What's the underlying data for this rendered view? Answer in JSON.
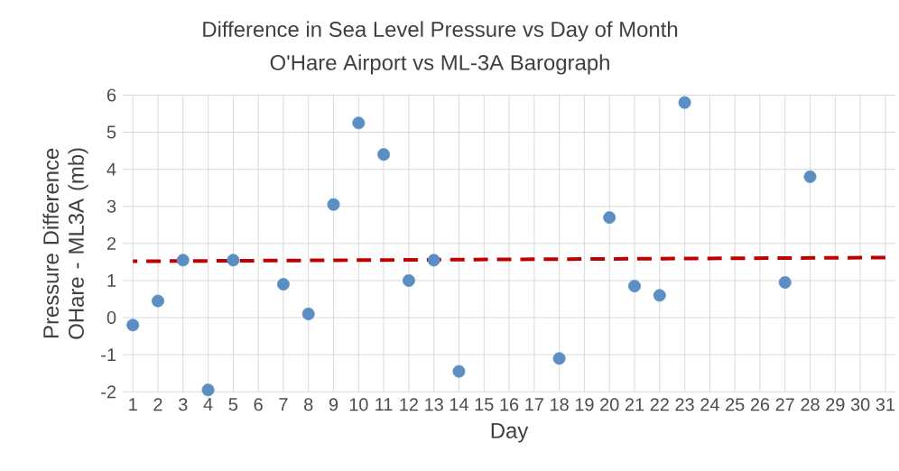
{
  "chart_data": {
    "type": "scatter",
    "title": "Difference in Sea Level Pressure vs Day of Month",
    "subtitle": "O'Hare Airport vs ML-3A Barograph",
    "xlabel": "Day",
    "ylabel": "Pressure Difference OHare - ML3A (mb)",
    "series": [
      {
        "color": "#5b8fc4",
        "marker": "circle",
        "x": [
          1,
          2,
          3,
          4,
          5,
          7,
          8,
          9,
          10,
          11,
          12,
          13,
          14,
          18,
          20,
          21,
          22,
          23,
          27,
          28
        ],
        "values": [
          -0.2,
          0.45,
          1.55,
          -1.95,
          1.55,
          0.9,
          0.1,
          3.05,
          5.25,
          4.4,
          1.0,
          1.55,
          -1.45,
          -1.1,
          2.7,
          0.85,
          0.6,
          5.8,
          0.95,
          3.8
        ]
      },
      {
        "type": "line",
        "color": "#c00000",
        "line_style": "dashed",
        "x": [
          1,
          31
        ],
        "values": [
          1.52,
          1.62
        ]
      }
    ],
    "xlim": [
      0.6,
      31.4
    ],
    "xticks": [
      1,
      2,
      3,
      4,
      5,
      6,
      7,
      8,
      9,
      10,
      11,
      12,
      13,
      14,
      15,
      16,
      17,
      18,
      19,
      20,
      21,
      22,
      23,
      24,
      25,
      26,
      27,
      28,
      29,
      30,
      31
    ],
    "ylim": [
      -2,
      6
    ],
    "yticks": [
      -2,
      -1,
      0,
      1,
      2,
      3,
      4,
      5,
      6
    ],
    "grid": true
  }
}
